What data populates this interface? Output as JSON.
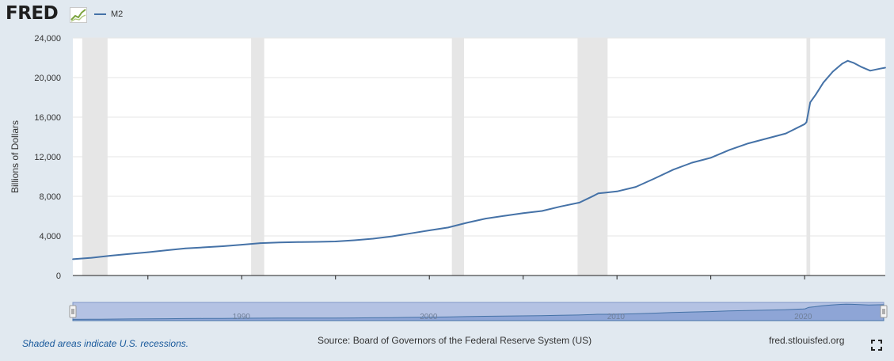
{
  "header": {
    "logo_text": "FRED",
    "logo_icon": "fred-chart-icon"
  },
  "chart_data": {
    "type": "line",
    "series": [
      {
        "name": "M2",
        "color": "#4572a7",
        "x": [
          1981.0,
          1982.0,
          1983.0,
          1984.0,
          1985.0,
          1986.0,
          1987.0,
          1988.0,
          1989.0,
          1990.0,
          1991.0,
          1992.0,
          1993.0,
          1994.0,
          1995.0,
          1996.0,
          1997.0,
          1998.0,
          1999.0,
          2000.0,
          2001.0,
          2002.0,
          2003.0,
          2004.0,
          2005.0,
          2006.0,
          2007.0,
          2008.0,
          2008.8,
          2009.0,
          2010.0,
          2011.0,
          2012.0,
          2013.0,
          2014.0,
          2015.0,
          2016.0,
          2017.0,
          2018.0,
          2019.0,
          2020.0,
          2020.1,
          2020.3,
          2020.6,
          2021.0,
          2021.5,
          2022.0,
          2022.3,
          2022.6,
          2023.0,
          2023.5,
          2024.0,
          2024.3
        ],
        "values": [
          1650,
          1790,
          2000,
          2180,
          2350,
          2550,
          2740,
          2850,
          2960,
          3110,
          3270,
          3340,
          3380,
          3400,
          3440,
          3560,
          3720,
          3950,
          4260,
          4560,
          4850,
          5330,
          5750,
          6030,
          6300,
          6520,
          6980,
          7370,
          8100,
          8300,
          8500,
          8950,
          9800,
          10700,
          11400,
          11900,
          12700,
          13350,
          13850,
          14350,
          15300,
          15500,
          17500,
          18300,
          19500,
          20600,
          21400,
          21700,
          21500,
          21100,
          20700,
          20900,
          21000
        ]
      }
    ],
    "recessions": [
      [
        1981.5,
        1982.85
      ],
      [
        1990.5,
        1991.2
      ],
      [
        2001.2,
        2001.85
      ],
      [
        2007.9,
        2009.5
      ],
      [
        2020.1,
        2020.3
      ]
    ],
    "xlim": [
      1981.0,
      2024.3
    ],
    "ylim": [
      0,
      24000
    ],
    "xticks": [
      1985,
      1990,
      1995,
      2000,
      2005,
      2010,
      2015,
      2020
    ],
    "yticks": [
      0,
      4000,
      8000,
      12000,
      16000,
      20000,
      24000
    ],
    "ytick_labels": [
      "0",
      "4,000",
      "8,000",
      "12,000",
      "16,000",
      "20,000",
      "24,000"
    ],
    "ylabel": "Billions of Dollars",
    "xlabel": "",
    "grid": true,
    "navigator_ticks": [
      1990,
      2000,
      2010,
      2020
    ]
  },
  "footer": {
    "recession_note": "Shaded areas indicate U.S. recessions.",
    "source": "Source: Board of Governors of the Federal Reserve System (US)",
    "url": "fred.stlouisfed.org",
    "fullscreen_icon": "fullscreen-icon"
  }
}
